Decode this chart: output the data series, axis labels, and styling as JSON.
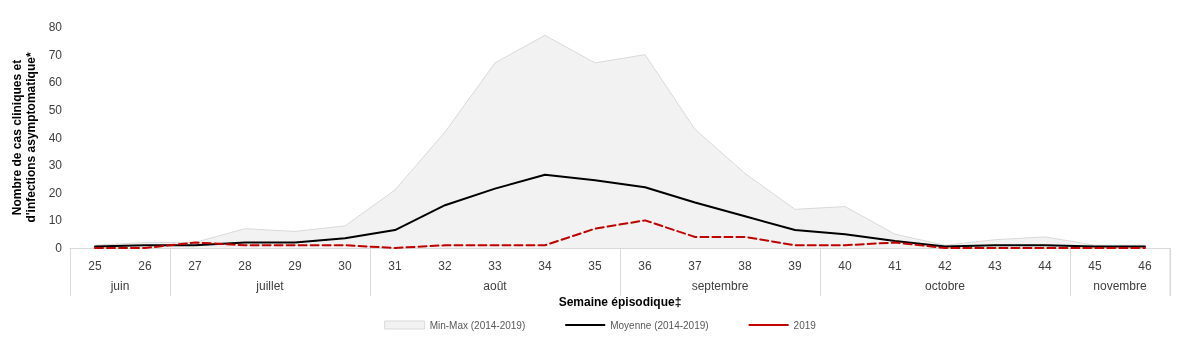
{
  "chart_data": {
    "type": "line",
    "categories": [
      "25",
      "26",
      "27",
      "28",
      "29",
      "30",
      "31",
      "32",
      "33",
      "34",
      "35",
      "36",
      "37",
      "38",
      "39",
      "40",
      "41",
      "42",
      "43",
      "44",
      "45",
      "46"
    ],
    "series": [
      {
        "name": "Min-Max (2014-2019)",
        "type": "area",
        "color": "#f2f2f2",
        "values": [
          1,
          2,
          2,
          7,
          6,
          8,
          21,
          42,
          67,
          77,
          67,
          70,
          43,
          27,
          14,
          15,
          5,
          1,
          3,
          4,
          1,
          1
        ]
      },
      {
        "name": "Moyenne (2014-2019)",
        "color": "#000000",
        "line_style": "solid",
        "values": [
          0.5,
          1,
          1,
          2,
          2,
          3.5,
          6.5,
          15.5,
          21.5,
          26.5,
          24.5,
          22,
          16.5,
          11.5,
          6.5,
          5,
          2.5,
          0.5,
          1,
          1,
          0.5,
          0.5
        ]
      },
      {
        "name": "2019",
        "color": "#c00000",
        "line_style": "dashed",
        "values": [
          0,
          0,
          2,
          1,
          1,
          1,
          0,
          1,
          1,
          1,
          7,
          10,
          4,
          4,
          1,
          1,
          2,
          0,
          0,
          0,
          0,
          0
        ]
      }
    ],
    "xlabel": "Semaine épisodique‡",
    "ylabel": "Nombre de cas cliniques et d'infections asymptomatique*",
    "ylim": [
      0,
      80
    ],
    "yticks": [
      0,
      10,
      20,
      30,
      40,
      50,
      60,
      70,
      80
    ],
    "annotations": [
      "juin",
      "juillet",
      "août",
      "septembre",
      "octobre",
      "novembre"
    ],
    "legend": "bottom",
    "grid": false,
    "marker": "none"
  }
}
